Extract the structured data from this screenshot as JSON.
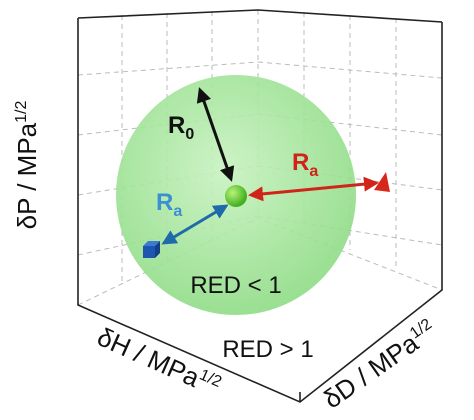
{
  "axes": {
    "dp": {
      "label": "δP / MPa",
      "exponent": "1/2"
    },
    "dh": {
      "label": "δH / MPa",
      "exponent": "1/2"
    },
    "dd": {
      "label": "δD / MPa",
      "exponent": "1/2"
    }
  },
  "labels": {
    "r0": {
      "text": "R",
      "subscript": "0"
    },
    "ra_red": {
      "text": "R",
      "subscript": "a"
    },
    "ra_blue": {
      "text": "R",
      "subscript": "a"
    }
  },
  "regions": {
    "inside": "RED < 1",
    "outside": "RED > 1"
  }
}
